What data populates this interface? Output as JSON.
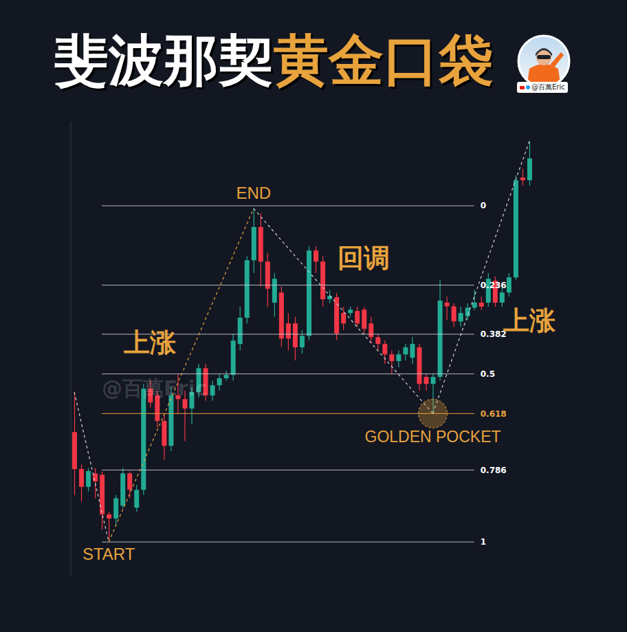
{
  "chart_data": {
    "type": "candlestick",
    "title": "斐波那契黄金口袋",
    "title_highlight": "黄金口袋",
    "handle": "@百萬Eric",
    "watermark": "@百萬Eric",
    "categories": [
      null,
      null,
      null,
      null,
      null,
      null,
      null,
      null,
      null,
      null,
      null,
      null,
      null,
      null,
      null,
      null,
      null,
      null,
      null,
      null,
      null,
      null,
      null,
      null,
      null,
      null,
      null,
      null,
      null,
      null,
      null,
      null,
      null,
      null,
      null,
      null,
      null,
      null,
      null,
      null,
      null,
      null,
      null,
      null,
      null,
      null,
      null,
      null,
      null,
      null,
      null,
      null,
      null,
      null,
      null,
      null,
      null,
      null,
      null,
      null,
      null,
      null,
      null,
      null,
      null,
      null,
      null
    ],
    "open": [
      0.673,
      0.783,
      0.836,
      0.796,
      0.8,
      0.918,
      0.93,
      0.892,
      0.796,
      0.898,
      0.845,
      0.544,
      0.564,
      0.64,
      0.714,
      0.564,
      0.575,
      0.603,
      0.554,
      0.483,
      0.564,
      0.534,
      0.513,
      0.503,
      0.411,
      0.333,
      0.162,
      0.063,
      0.166,
      0.288,
      0.258,
      0.35,
      0.35,
      0.421,
      0.387,
      0.133,
      0.166,
      0.278,
      0.272,
      0.319,
      0.319,
      0.313,
      0.309,
      0.35,
      0.391,
      0.411,
      0.442,
      0.462,
      0.442,
      0.452,
      0.421,
      0.509,
      0.53,
      0.509,
      0.288,
      0.299,
      0.344,
      0.329,
      0.303,
      0.288,
      0.288,
      0.223,
      0.288,
      0.258,
      0.213,
      -0.084,
      -0.076
    ],
    "high": [
      0.554,
      0.77,
      0.78,
      0.78,
      0.79,
      0.91,
      0.86,
      0.78,
      0.79,
      0.83,
      0.53,
      0.52,
      0.55,
      0.62,
      0.54,
      0.5,
      0.55,
      0.54,
      0.47,
      0.47,
      0.52,
      0.5,
      0.49,
      0.38,
      0.3,
      0.15,
      0.008,
      0.022,
      0.14,
      0.2,
      0.24,
      0.32,
      0.33,
      0.37,
      0.12,
      0.12,
      0.15,
      0.25,
      0.26,
      0.3,
      0.3,
      0.3,
      0.3,
      0.33,
      0.38,
      0.4,
      0.43,
      0.43,
      0.41,
      0.39,
      0.41,
      0.5,
      0.5,
      0.22,
      0.27,
      0.29,
      0.3,
      0.29,
      0.25,
      0.27,
      0.2,
      0.21,
      0.24,
      0.2,
      -0.09,
      -0.11,
      -0.192
    ],
    "low": [
      0.861,
      0.88,
      0.85,
      0.87,
      0.963,
      1,
      0.95,
      0.9,
      0.87,
      0.91,
      0.86,
      0.6,
      0.66,
      0.755,
      0.73,
      0.62,
      0.7,
      0.65,
      0.57,
      0.58,
      0.58,
      0.55,
      0.52,
      0.52,
      0.43,
      0.35,
      0.2,
      0.24,
      0.3,
      0.33,
      0.42,
      0.43,
      0.46,
      0.44,
      0.4,
      0.2,
      0.3,
      0.29,
      0.4,
      0.37,
      0.33,
      0.36,
      0.38,
      0.41,
      0.43,
      0.47,
      0.5,
      0.48,
      0.46,
      0.47,
      0.55,
      0.55,
      0.618,
      0.52,
      0.34,
      0.36,
      0.36,
      0.34,
      0.31,
      0.31,
      0.3,
      0.3,
      0.3,
      0.27,
      0.22,
      -0.06,
      -0.06
    ],
    "close": [
      0.783,
      0.836,
      0.789,
      0.82,
      0.918,
      0.93,
      0.87,
      0.796,
      0.845,
      0.845,
      0.544,
      0.585,
      0.64,
      0.714,
      0.564,
      0.575,
      0.603,
      0.554,
      0.483,
      0.564,
      0.534,
      0.513,
      0.503,
      0.401,
      0.333,
      0.162,
      0.063,
      0.166,
      0.247,
      0.217,
      0.395,
      0.395,
      0.421,
      0.387,
      0.133,
      0.166,
      0.278,
      0.268,
      0.38,
      0.35,
      0.309,
      0.35,
      0.366,
      0.391,
      0.411,
      0.442,
      0.462,
      0.442,
      0.421,
      0.411,
      0.53,
      0.53,
      0.509,
      0.282,
      0.299,
      0.344,
      0.319,
      0.303,
      0.288,
      0.3,
      0.217,
      0.288,
      0.258,
      0.213,
      -0.076,
      -0.076,
      -0.141
    ],
    "ylim": [
      -0.25,
      1.1
    ],
    "yticks": [
      0,
      0.236,
      0.382,
      0.5,
      0.618,
      0.786,
      1
    ],
    "grid": true,
    "zigzag": {
      "x": [
        0,
        5,
        26,
        52,
        66
      ],
      "values": [
        0.554,
        1,
        0.008,
        0.618,
        -0.192
      ],
      "colors": [
        "#d1d4dc",
        "#e8a33d",
        "#d1d4dc",
        "#d1d4dc"
      ],
      "line_style": "dashed"
    },
    "annotations": [
      {
        "text": "START",
        "x": 5,
        "y": 1.035
      },
      {
        "text": "END",
        "x": 26,
        "y": -0.039
      },
      {
        "text": "上涨",
        "x": 11,
        "y": 0.405
      },
      {
        "text": "回调",
        "x": 42,
        "y": 0.155
      },
      {
        "text": "上涨",
        "x": 66,
        "y": 0.34
      },
      {
        "text": "GOLDEN POCKET",
        "x": 52,
        "y": 0.618,
        "marker": "circle"
      }
    ]
  }
}
